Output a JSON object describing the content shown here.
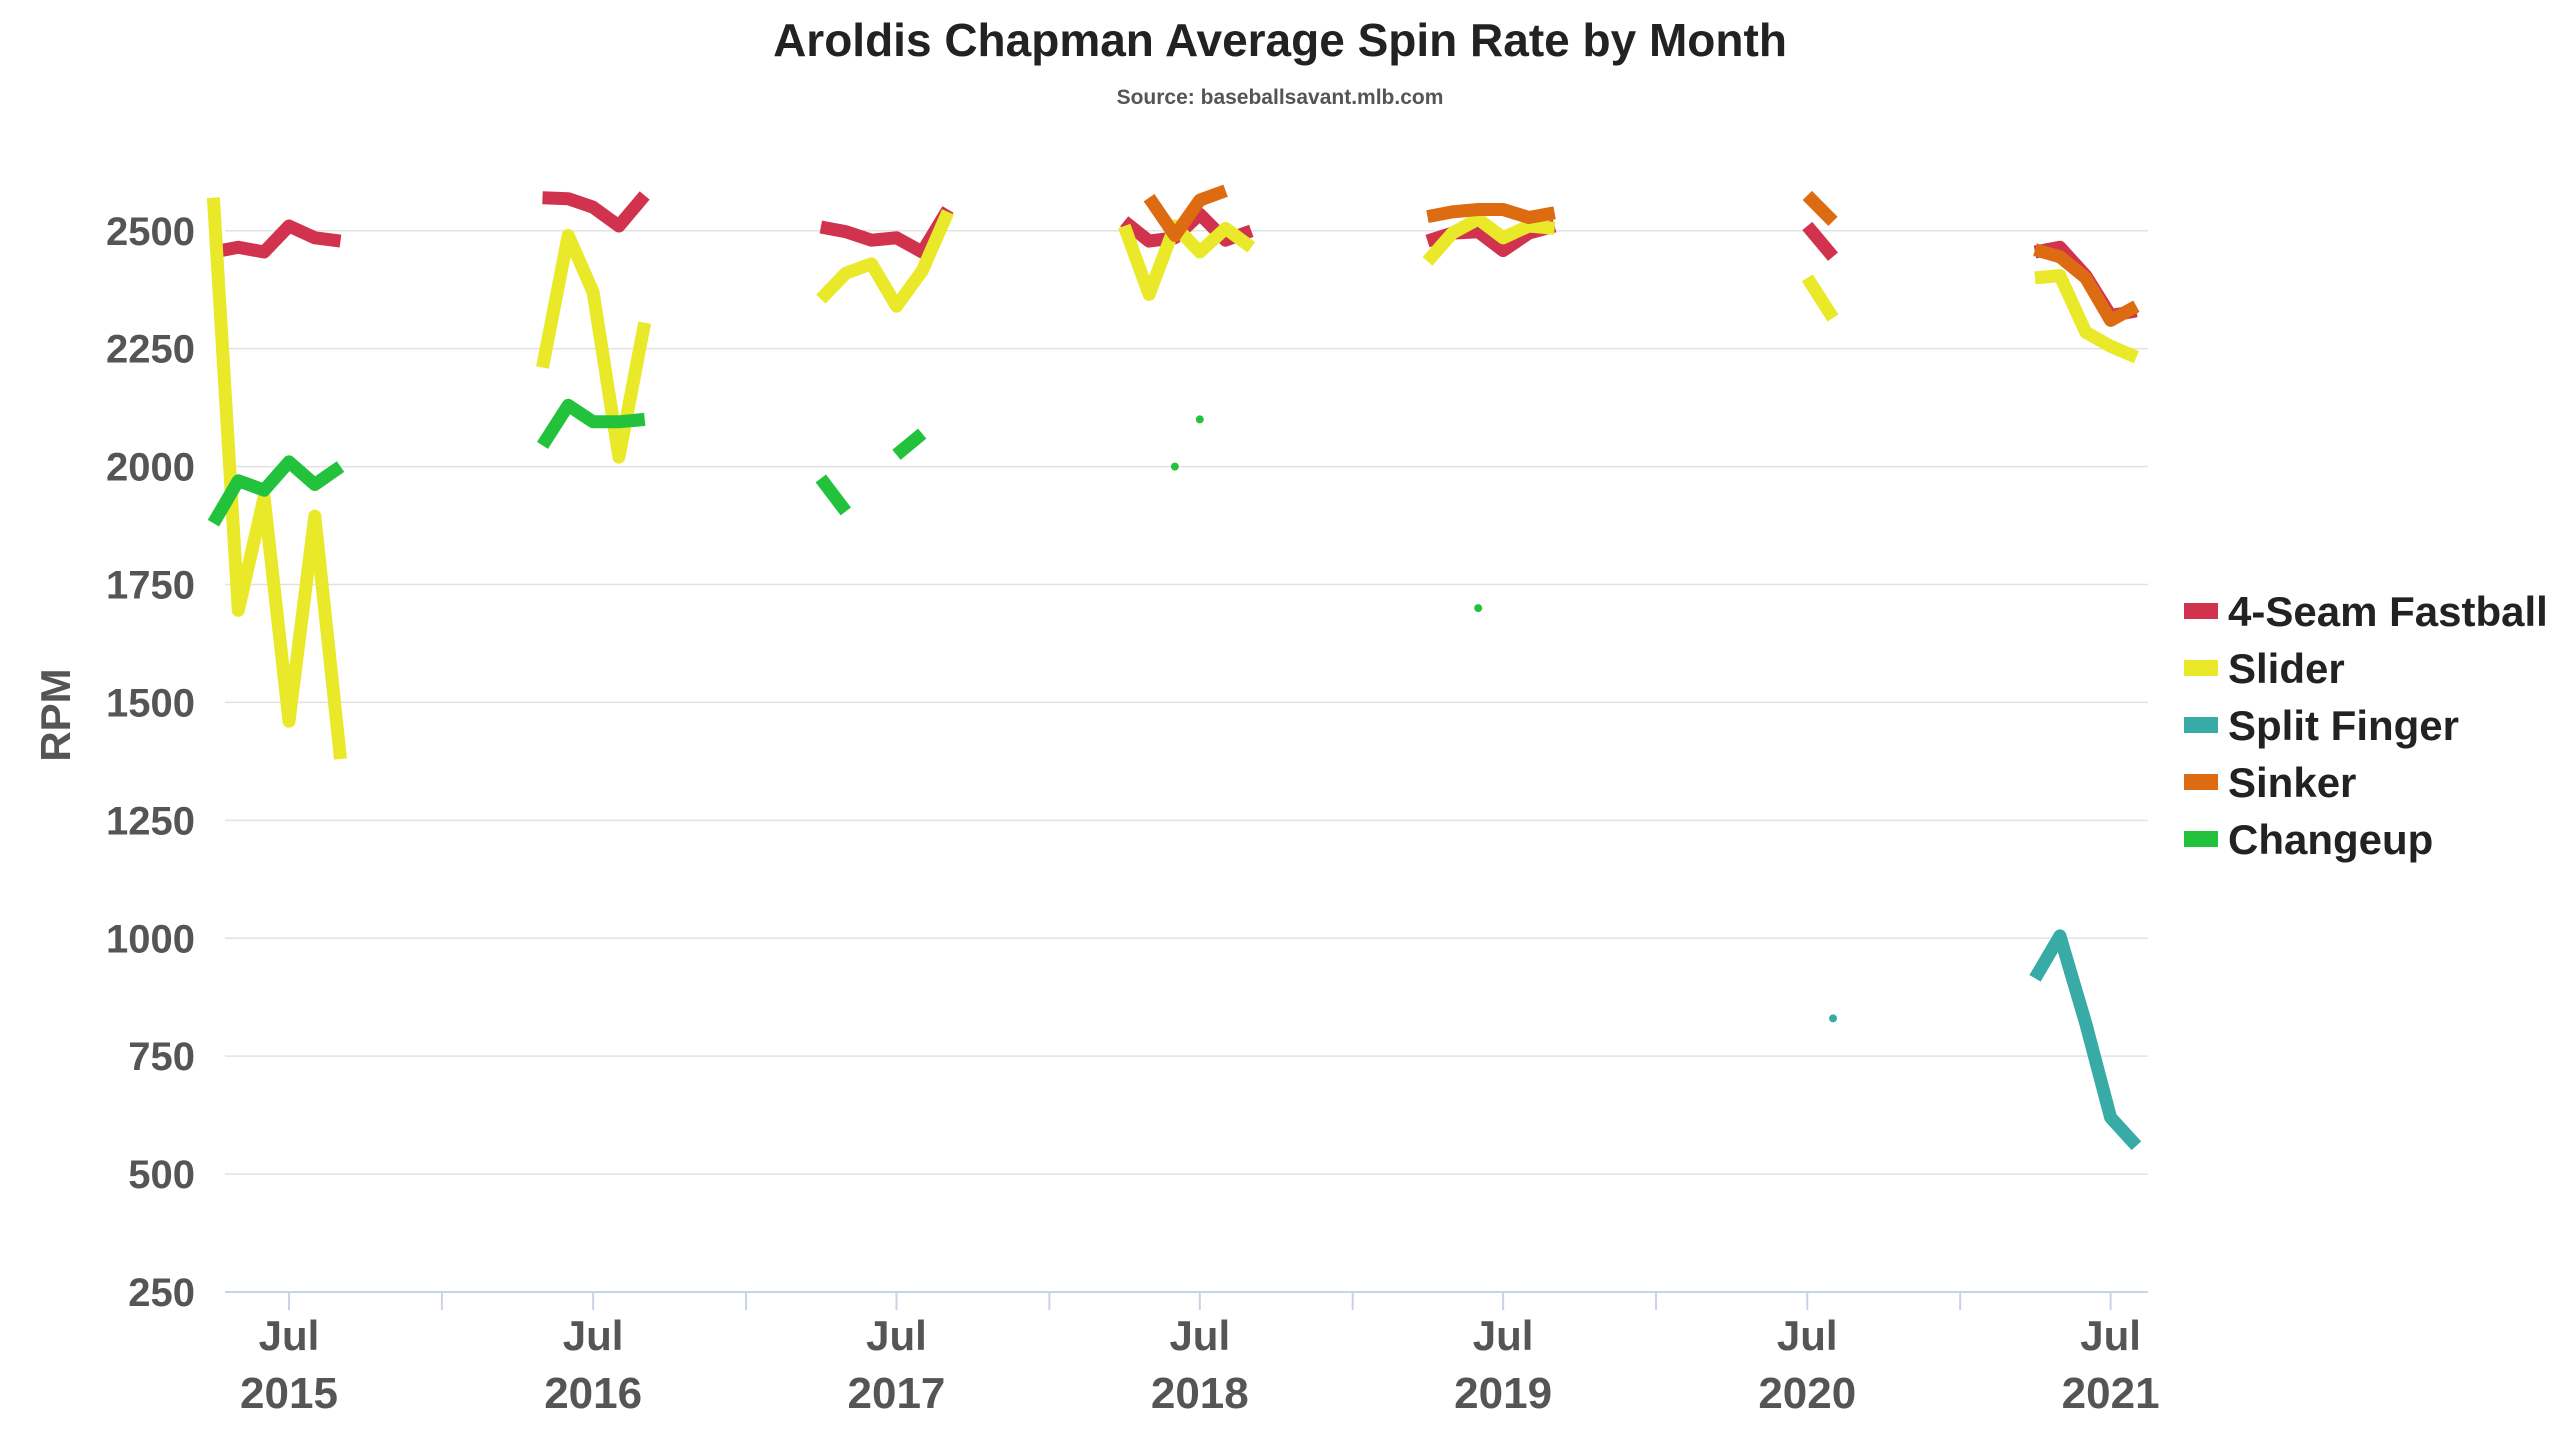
{
  "chart_data": {
    "type": "line",
    "title": "Aroldis Chapman Average Spin Rate by Month",
    "subtitle": "Source: baseballsavant.mlb.com",
    "ylabel": "RPM",
    "xlabel": "",
    "ylim": [
      250,
      2650
    ],
    "xlim": [
      "2015-04-15",
      "2021-08-15"
    ],
    "yticks": [
      250,
      500,
      750,
      1000,
      1250,
      1500,
      1750,
      2000,
      2250,
      2500
    ],
    "xticks": [
      {
        "date": "2015-07-01",
        "label": "Jul",
        "year": "2015"
      },
      {
        "date": "2016-07-01",
        "label": "Jul",
        "year": "2016"
      },
      {
        "date": "2017-07-01",
        "label": "Jul",
        "year": "2017"
      },
      {
        "date": "2018-07-01",
        "label": "Jul",
        "year": "2018"
      },
      {
        "date": "2019-07-01",
        "label": "Jul",
        "year": "2019"
      },
      {
        "date": "2020-07-01",
        "label": "Jul",
        "year": "2020"
      },
      {
        "date": "2021-07-01",
        "label": "Jul",
        "year": "2021"
      }
    ],
    "year_separators": [
      "2016-01-01",
      "2017-01-01",
      "2018-01-01",
      "2019-01-01",
      "2020-01-01",
      "2021-01-01"
    ],
    "grid": true,
    "legend": "right",
    "series": [
      {
        "name": "4-Seam Fastball",
        "color": "#d1334f",
        "segments": [
          [
            [
              "2015-04-01",
              2455
            ],
            [
              "2015-05-01",
              2465
            ],
            [
              "2015-06-01",
              2455
            ],
            [
              "2015-07-01",
              2510
            ],
            [
              "2015-08-01",
              2485
            ],
            [
              "2015-09-01",
              2478
            ]
          ],
          [
            [
              "2016-05-01",
              2570
            ],
            [
              "2016-06-01",
              2568
            ],
            [
              "2016-07-01",
              2550
            ],
            [
              "2016-08-01",
              2510
            ],
            [
              "2016-09-01",
              2575
            ]
          ],
          [
            [
              "2017-04-01",
              2508
            ],
            [
              "2017-05-01",
              2498
            ],
            [
              "2017-06-01",
              2480
            ],
            [
              "2017-07-01",
              2485
            ],
            [
              "2017-08-01",
              2455
            ],
            [
              "2017-09-01",
              2545
            ]
          ],
          [
            [
              "2018-04-01",
              2520
            ],
            [
              "2018-05-01",
              2478
            ],
            [
              "2018-06-01",
              2485
            ],
            [
              "2018-07-01",
              2535
            ],
            [
              "2018-08-01",
              2480
            ],
            [
              "2018-09-01",
              2500
            ]
          ],
          [
            [
              "2019-04-01",
              2478
            ],
            [
              "2019-05-01",
              2495
            ],
            [
              "2019-06-01",
              2498
            ],
            [
              "2019-07-01",
              2458
            ],
            [
              "2019-08-01",
              2495
            ],
            [
              "2019-09-01",
              2510
            ]
          ],
          [
            [
              "2020-07-01",
              2510
            ],
            [
              "2020-08-01",
              2445
            ]
          ],
          [
            [
              "2021-04-01",
              2455
            ],
            [
              "2021-05-01",
              2465
            ],
            [
              "2021-06-01",
              2405
            ],
            [
              "2021-07-01",
              2320
            ],
            [
              "2021-08-01",
              2330
            ]
          ]
        ],
        "points": []
      },
      {
        "name": "Slider",
        "color": "#e9e92a",
        "segments": [
          [
            [
              "2015-04-01",
              2570
            ],
            [
              "2015-05-01",
              1695
            ],
            [
              "2015-06-01",
              1935
            ],
            [
              "2015-07-01",
              1460
            ],
            [
              "2015-08-01",
              1895
            ],
            [
              "2015-09-01",
              1380
            ]
          ],
          [
            [
              "2016-05-01",
              2210
            ],
            [
              "2016-06-01",
              2490
            ],
            [
              "2016-07-01",
              2370
            ],
            [
              "2016-08-01",
              2020
            ],
            [
              "2016-09-01",
              2305
            ]
          ],
          [
            [
              "2017-04-01",
              2355
            ],
            [
              "2017-05-01",
              2410
            ],
            [
              "2017-06-01",
              2430
            ],
            [
              "2017-07-01",
              2340
            ],
            [
              "2017-08-01",
              2415
            ],
            [
              "2017-09-01",
              2540
            ]
          ],
          [
            [
              "2018-04-01",
              2510
            ],
            [
              "2018-05-01",
              2365
            ],
            [
              "2018-06-01",
              2510
            ],
            [
              "2018-07-01",
              2455
            ],
            [
              "2018-08-01",
              2505
            ],
            [
              "2018-09-01",
              2465
            ]
          ],
          [
            [
              "2019-04-01",
              2435
            ],
            [
              "2019-05-01",
              2495
            ],
            [
              "2019-06-01",
              2525
            ],
            [
              "2019-07-01",
              2485
            ],
            [
              "2019-08-01",
              2510
            ],
            [
              "2019-09-01",
              2505
            ]
          ],
          [
            [
              "2020-07-01",
              2400
            ],
            [
              "2020-08-01",
              2315
            ]
          ],
          [
            [
              "2021-04-01",
              2400
            ],
            [
              "2021-05-01",
              2405
            ],
            [
              "2021-06-01",
              2285
            ],
            [
              "2021-07-01",
              2255
            ],
            [
              "2021-08-01",
              2232
            ]
          ]
        ],
        "points": []
      },
      {
        "name": "Split Finger",
        "color": "#38aba6",
        "segments": [
          [
            [
              "2021-04-01",
              915
            ],
            [
              "2021-05-01",
              1005
            ],
            [
              "2021-06-01",
              820
            ],
            [
              "2021-07-01",
              620
            ],
            [
              "2021-08-01",
              560
            ]
          ]
        ],
        "points": [
          [
            "2020-08-01",
            830
          ]
        ]
      },
      {
        "name": "Sinker",
        "color": "#dd6b12",
        "segments": [
          [
            [
              "2018-05-01",
              2570
            ],
            [
              "2018-06-01",
              2490
            ],
            [
              "2018-07-01",
              2565
            ],
            [
              "2018-08-01",
              2585
            ]
          ],
          [
            [
              "2019-04-01",
              2530
            ],
            [
              "2019-05-01",
              2540
            ],
            [
              "2019-06-01",
              2545
            ],
            [
              "2019-07-01",
              2545
            ],
            [
              "2019-08-01",
              2528
            ],
            [
              "2019-09-01",
              2538
            ]
          ],
          [
            [
              "2020-07-01",
              2575
            ],
            [
              "2020-08-01",
              2520
            ]
          ],
          [
            [
              "2021-04-01",
              2460
            ],
            [
              "2021-05-01",
              2445
            ],
            [
              "2021-06-01",
              2400
            ],
            [
              "2021-07-01",
              2310
            ],
            [
              "2021-08-01",
              2340
            ]
          ]
        ],
        "points": []
      },
      {
        "name": "Changeup",
        "color": "#22c23c",
        "segments": [
          [
            [
              "2015-04-01",
              1880
            ],
            [
              "2015-05-01",
              1970
            ],
            [
              "2015-06-01",
              1950
            ],
            [
              "2015-07-01",
              2010
            ],
            [
              "2015-08-01",
              1962
            ],
            [
              "2015-09-01",
              2000
            ]
          ],
          [
            [
              "2016-05-01",
              2045
            ],
            [
              "2016-06-01",
              2130
            ],
            [
              "2016-07-01",
              2095
            ],
            [
              "2016-08-01",
              2095
            ],
            [
              "2016-09-01",
              2100
            ]
          ],
          [
            [
              "2017-04-01",
              1975
            ],
            [
              "2017-05-01",
              1905
            ]
          ],
          [
            [
              "2017-07-01",
              2025
            ],
            [
              "2017-08-01",
              2070
            ]
          ]
        ],
        "points": [
          [
            "2018-06-01",
            2000
          ],
          [
            "2018-07-01",
            2100
          ],
          [
            "2019-06-01",
            1700
          ]
        ]
      }
    ]
  }
}
